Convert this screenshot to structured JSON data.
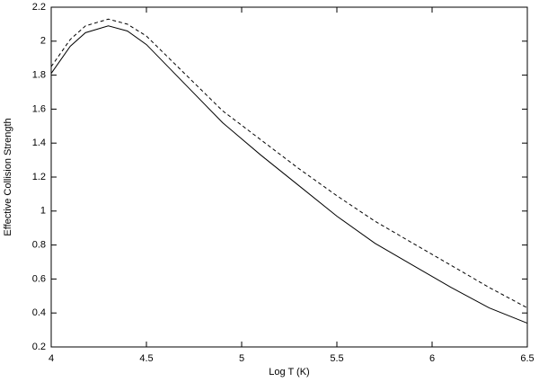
{
  "chart_data": {
    "type": "line",
    "xlabel": "Log T (K)",
    "ylabel": "Effective Collision Strength",
    "x": [
      4,
      4.1,
      4.18,
      4.3,
      4.4,
      4.5,
      4.7,
      4.9,
      5.1,
      5.3,
      5.5,
      5.7,
      5.9,
      6.1,
      6.3,
      6.5
    ],
    "series": [
      {
        "color": "#000000",
        "dash": false,
        "values": [
          1.81,
          1.97,
          2.05,
          2.09,
          2.06,
          1.98,
          1.75,
          1.52,
          1.33,
          1.15,
          0.97,
          0.81,
          0.68,
          0.55,
          0.43,
          0.34
        ]
      },
      {
        "color": "#000000",
        "dash": true,
        "values": [
          1.85,
          2.01,
          2.09,
          2.13,
          2.1,
          2.03,
          1.81,
          1.59,
          1.42,
          1.25,
          1.09,
          0.94,
          0.81,
          0.68,
          0.55,
          0.43
        ]
      }
    ],
    "xlim": [
      4,
      6.5
    ],
    "xticks": [
      4,
      4.5,
      5,
      5.5,
      6,
      6.5
    ],
    "ylim": [
      0.2,
      2.2
    ],
    "yticks": [
      0.2,
      0.4,
      0.6,
      0.8,
      1,
      1.2,
      1.4,
      1.6,
      1.8,
      2,
      2.2
    ],
    "grid": false
  }
}
